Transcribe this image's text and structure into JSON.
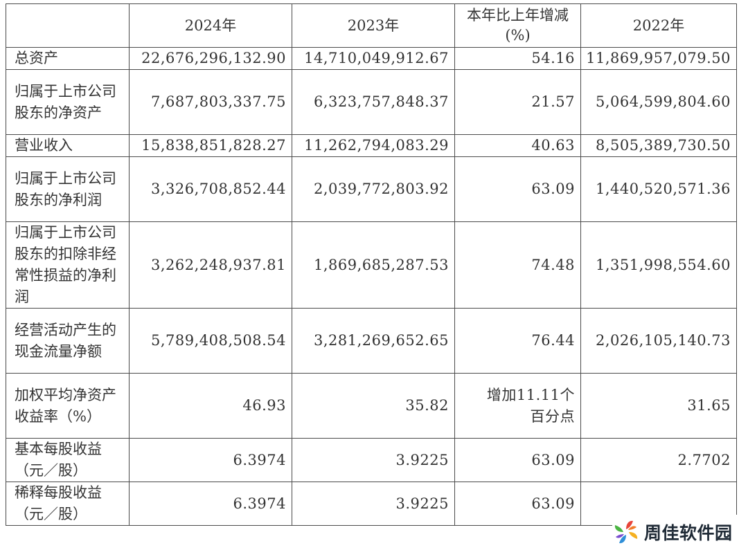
{
  "table": {
    "headers": [
      "",
      "2024年",
      "2023年",
      "本年比上年增减(%)",
      "2022年"
    ],
    "rows": [
      {
        "label": "总资产",
        "v2024": "22,676,296,132.90",
        "v2023": "14,710,049,912.67",
        "change": "54.16",
        "v2022": "11,869,957,079.50"
      },
      {
        "label": "归属于上市公司股东的净资产",
        "v2024": "7,687,803,337.75",
        "v2023": "6,323,757,848.37",
        "change": "21.57",
        "v2022": "5,064,599,804.60"
      },
      {
        "label": "营业收入",
        "v2024": "15,838,851,828.27",
        "v2023": "11,262,794,083.29",
        "change": "40.63",
        "v2022": "8,505,389,730.50"
      },
      {
        "label": "归属于上市公司股东的净利润",
        "v2024": "3,326,708,852.44",
        "v2023": "2,039,772,803.92",
        "change": "63.09",
        "v2022": "1,440,520,571.36"
      },
      {
        "label": "归属于上市公司股东的扣除非经常性损益的净利润",
        "v2024": "3,262,248,937.81",
        "v2023": "1,869,685,287.53",
        "change": "74.48",
        "v2022": "1,351,998,554.60"
      },
      {
        "label": "经营活动产生的现金流量净额",
        "v2024": "5,789,408,508.54",
        "v2023": "3,281,269,652.65",
        "change": "76.44",
        "v2022": "2,026,105,140.73"
      },
      {
        "label": "加权平均净资产收益率（%）",
        "v2024": "46.93",
        "v2023": "35.82",
        "change": "增加11.11个百分点",
        "v2022": "31.65"
      },
      {
        "label": "基本每股收益（元／股）",
        "v2024": "6.3974",
        "v2023": "3.9225",
        "change": "63.09",
        "v2022": "2.7702"
      },
      {
        "label": "稀释每股收益（元／股）",
        "v2024": "6.3974",
        "v2023": "3.9225",
        "change": "63.09",
        "v2022": ""
      }
    ]
  },
  "watermark": {
    "text": "周佳软件园",
    "icon": "pinwheel-logo-icon"
  }
}
